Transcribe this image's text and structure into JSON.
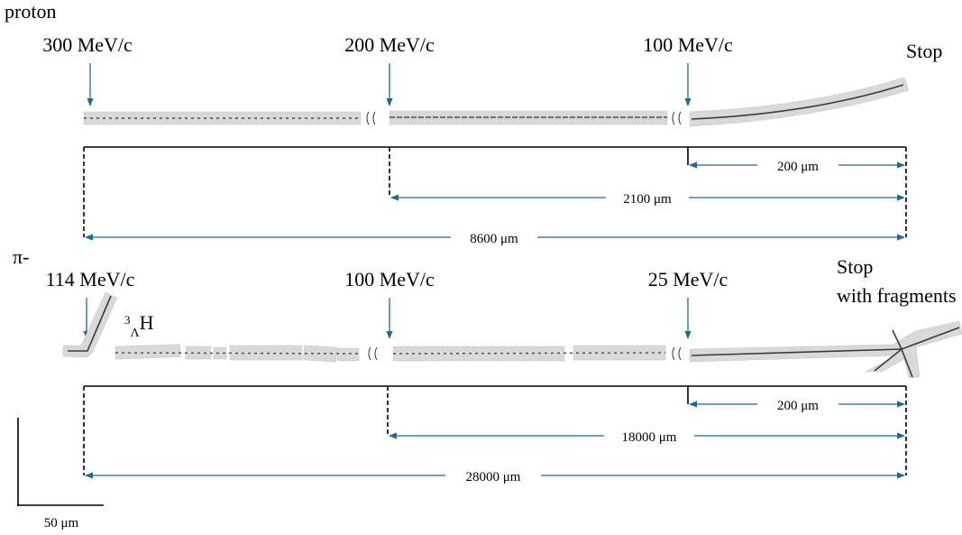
{
  "panels": [
    {
      "particle": "proton",
      "momenta": [
        "300 MeV/c",
        "200 MeV/c",
        "100 MeV/c"
      ],
      "end": [
        "Stop"
      ],
      "ranges": [
        "200 μm",
        "2100 μm",
        "8600 μm"
      ]
    },
    {
      "particle": "π-",
      "momenta": [
        "114 MeV/c",
        "100 MeV/c",
        "25 MeV/c"
      ],
      "end": [
        "Stop",
        "with fragments"
      ],
      "hypernucleus": {
        "mass": "3",
        "sub": "Λ",
        "symbol": "H"
      },
      "ranges": [
        "200 μm",
        "18000 μm",
        "28000 μm"
      ]
    }
  ],
  "scale_bar": "50 μm"
}
